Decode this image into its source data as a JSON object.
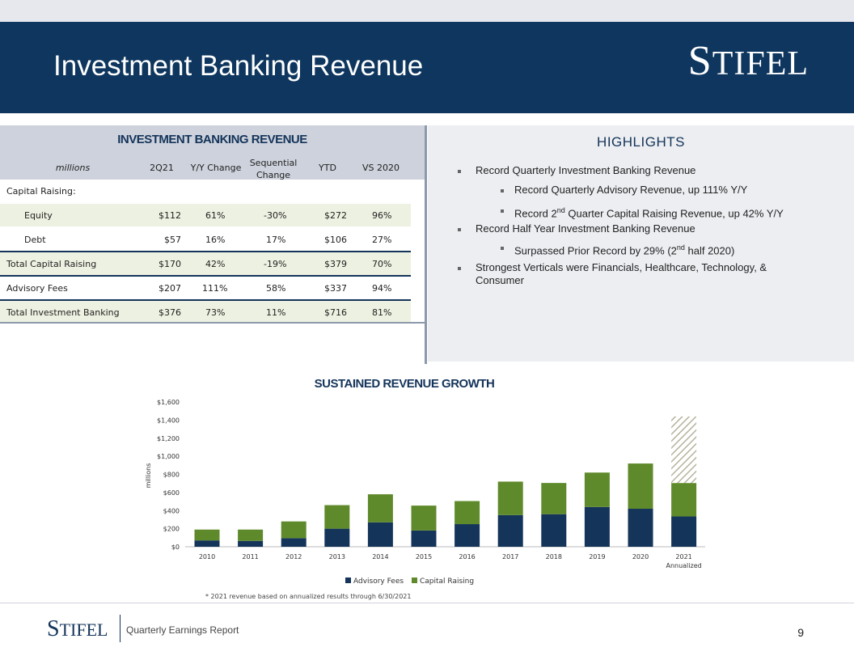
{
  "header": {
    "title": "Investment Banking Revenue",
    "logo_text": "STIFEL",
    "logo_first": "S",
    "logo_rest": "TIFEL"
  },
  "table": {
    "title": "INVESTMENT BANKING REVENUE",
    "columns": [
      "millions",
      "2Q21",
      "Y/Y Change",
      "Sequential Change",
      "YTD",
      "VS 2020"
    ],
    "section_label": "Capital Raising:",
    "rows": [
      {
        "label": "Equity",
        "q": "$112",
        "yy": "61%",
        "seq": "-30%",
        "ytd": "$272",
        "vs": "96%"
      },
      {
        "label": "Debt",
        "q": "$57",
        "yy": "16%",
        "seq": "17%",
        "ytd": "$106",
        "vs": "27%"
      },
      {
        "label": "Total Capital Raising",
        "q": "$170",
        "yy": "42%",
        "seq": "-19%",
        "ytd": "$379",
        "vs": "70%"
      },
      {
        "label": "Advisory Fees",
        "q": "$207",
        "yy": "111%",
        "seq": "58%",
        "ytd": "$337",
        "vs": "94%"
      },
      {
        "label": "Total Investment Banking",
        "q": "$376",
        "yy": "73%",
        "seq": "11%",
        "ytd": "$716",
        "vs": "81%"
      }
    ]
  },
  "highlights": {
    "title": "HIGHLIGHTS",
    "items": [
      {
        "level": 1,
        "text": "Record Quarterly Investment Banking Revenue"
      },
      {
        "level": 2,
        "text": "Record Quarterly Advisory Revenue, up 111% Y/Y"
      },
      {
        "level": 2,
        "pre": "Record 2",
        "sup": "nd",
        "post": " Quarter Capital Raising Revenue, up 42% Y/Y"
      },
      {
        "level": 1,
        "text": "Record Half Year Investment Banking Revenue"
      },
      {
        "level": 2,
        "pre": "Surpassed Prior Record by 29% (2",
        "sup": "nd",
        "post": " half 2020)"
      },
      {
        "level": 1,
        "text": "Strongest Verticals were Financials, Healthcare, Technology, & Consumer"
      }
    ]
  },
  "chart_data": {
    "type": "bar",
    "title": "SUSTAINED REVENUE GROWTH",
    "ylabel": "millions",
    "categories": [
      "2010",
      "2011",
      "2012",
      "2013",
      "2014",
      "2015",
      "2016",
      "2017",
      "2018",
      "2019",
      "2020",
      "2021"
    ],
    "category_sublabels": {
      "2021": "Annualized"
    },
    "series": [
      {
        "name": "Advisory Fees",
        "values": [
          70,
          65,
          95,
          200,
          270,
          180,
          250,
          350,
          360,
          440,
          420,
          335
        ]
      },
      {
        "name": "Capital Raising",
        "values": [
          120,
          125,
          185,
          260,
          310,
          275,
          255,
          370,
          345,
          380,
          500,
          370
        ]
      }
    ],
    "annualized_extra": {
      "category": "2021",
      "value": 735
    },
    "stacked": true,
    "ylim": [
      0,
      1600
    ],
    "yticks": [
      "$0",
      "$200",
      "$400",
      "$600",
      "$800",
      "$1,000",
      "$1,200",
      "$1,400",
      "$1,600"
    ],
    "ytick_values": [
      0,
      200,
      400,
      600,
      800,
      1000,
      1200,
      1400,
      1600
    ],
    "legend_position": "bottom",
    "colors": {
      "Advisory Fees": "#14345a",
      "Capital Raising": "#5f8a2b",
      "annualized": "#b5b39c"
    },
    "note": "* 2021 revenue based on annualized results through 6/30/2021"
  },
  "footer": {
    "logo_first": "S",
    "logo_rest": "TIFEL",
    "subtitle": "Quarterly Earnings Report",
    "page": "9"
  }
}
